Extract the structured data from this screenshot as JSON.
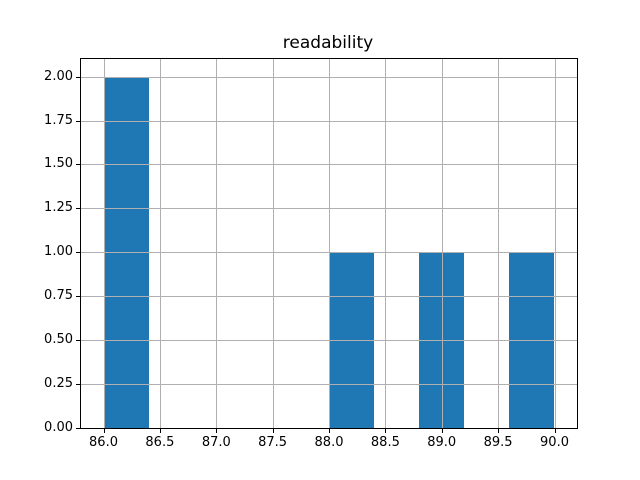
{
  "chart_data": {
    "type": "bar",
    "subtype": "histogram",
    "title": "readability",
    "xlabel": "",
    "ylabel": "",
    "bin_edges": [
      86.0,
      86.4,
      86.8,
      87.2,
      87.6,
      88.0,
      88.4,
      88.8,
      89.2,
      89.6,
      90.0
    ],
    "counts": [
      2,
      0,
      0,
      0,
      0,
      1,
      0,
      1,
      0,
      1
    ],
    "xticks": [
      86.0,
      86.5,
      87.0,
      87.5,
      88.0,
      88.5,
      89.0,
      89.5,
      90.0
    ],
    "xtick_labels": [
      "86.0",
      "86.5",
      "87.0",
      "87.5",
      "88.0",
      "88.5",
      "89.0",
      "89.5",
      "90.0"
    ],
    "yticks": [
      0.0,
      0.25,
      0.5,
      0.75,
      1.0,
      1.25,
      1.5,
      1.75,
      2.0
    ],
    "ytick_labels": [
      "0.00",
      "0.25",
      "0.50",
      "0.75",
      "1.00",
      "1.25",
      "1.50",
      "1.75",
      "2.00"
    ],
    "xlim": [
      85.8,
      90.2
    ],
    "ylim": [
      0.0,
      2.1
    ],
    "grid": true,
    "grid_over_bars": true,
    "legend": null,
    "colors": {
      "bar": "#1f77b4",
      "grid": "#b0b0b0",
      "spine": "#000000",
      "background": "#ffffff",
      "text": "#000000"
    }
  }
}
